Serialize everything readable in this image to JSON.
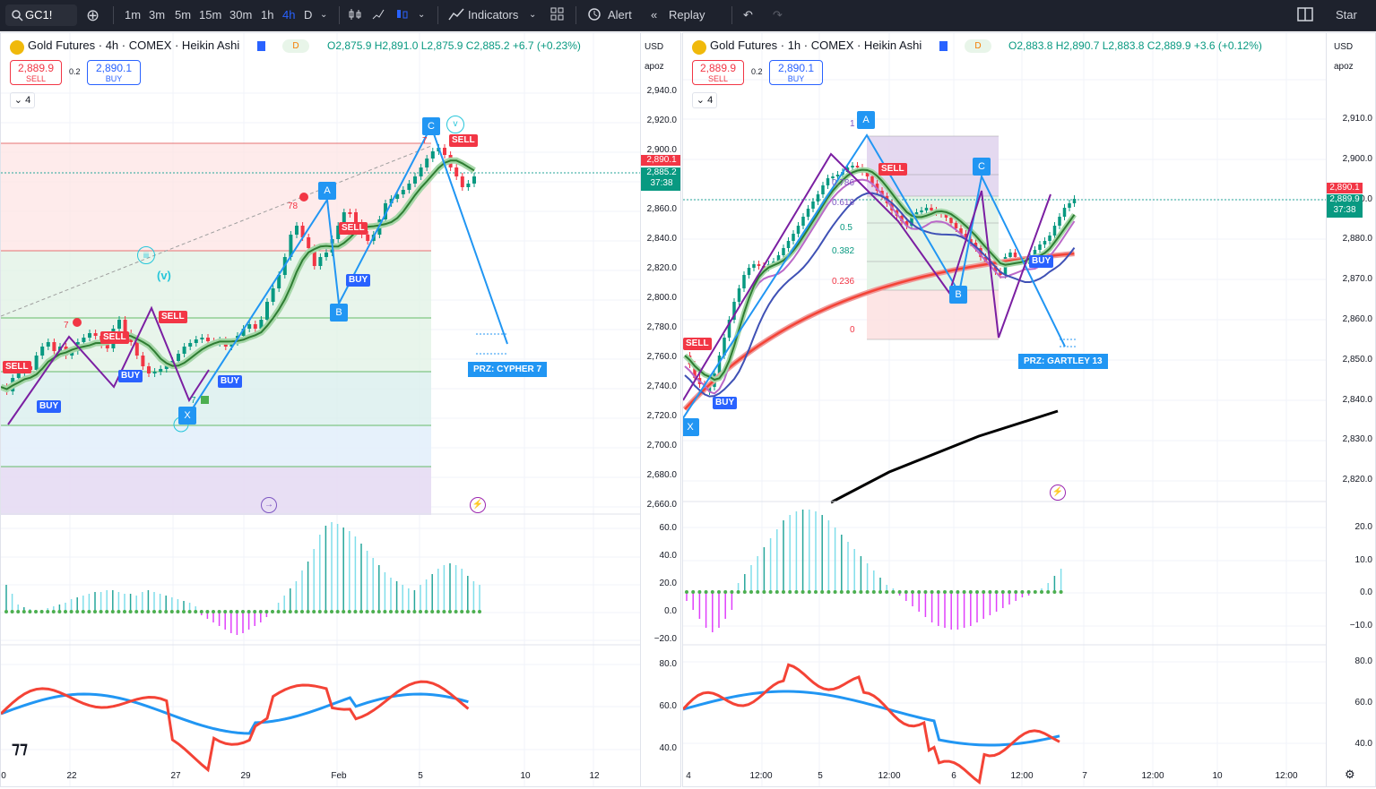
{
  "toolbar": {
    "symbol": "GC1!",
    "intervals": [
      "1m",
      "3m",
      "5m",
      "15m",
      "30m",
      "1h",
      "4h",
      "D"
    ],
    "active_interval": "4h",
    "indicators_label": "Indicators",
    "alert_label": "Alert",
    "replay_label": "Replay",
    "right_label": "Star"
  },
  "left": {
    "title": "Gold Futures · 4h · COMEX · Heikin Ashi",
    "badge": "D",
    "ohlc": "O2,875.9 H2,891.0 L2,875.9 C2,885.2 +6.7 (+0.23%)",
    "sell_price": "2,889.9",
    "sell_label": "SELL",
    "spread": "0.2",
    "buy_price": "2,890.1",
    "buy_label": "BUY",
    "collapse": "4",
    "currency": "USD",
    "mode": "apoz",
    "price_ticks": [
      "2,940.0",
      "2,920.0",
      "2,900.0",
      "2,880.0",
      "2,860.0",
      "2,840.0",
      "2,820.0",
      "2,800.0",
      "2,780.0",
      "2,760.0",
      "2,740.0",
      "2,720.0",
      "2,700.0",
      "2,680.0",
      "2,660.0"
    ],
    "osc_ticks": [
      "60.0",
      "40.0",
      "20.0",
      "0.0",
      "−20.0"
    ],
    "rsi_ticks": [
      "80.0",
      "60.0",
      "40.0"
    ],
    "tag_red": "2,890.1",
    "tag_green": "2,885.2",
    "tag_time": "37:38",
    "x_ticks": [
      "0",
      "22",
      "27",
      "29",
      "Feb",
      "5",
      "10",
      "12"
    ],
    "labels": {
      "sell": "SELL",
      "buy": "BUY",
      "a": "A",
      "b": "B",
      "c": "C",
      "x": "X",
      "wave_v": "(v)",
      "wave_iii": "iii",
      "wave_vv": "v",
      "seven": "7",
      "seven_eight": "78"
    },
    "prz": "PRZ: CYPHER 7"
  },
  "right": {
    "title": "Gold Futures · 1h · COMEX · Heikin Ashi",
    "badge": "D",
    "ohlc": "O2,883.8 H2,890.7 L2,883.8 C2,889.9 +3.6 (+0.12%)",
    "sell_price": "2,889.9",
    "sell_label": "SELL",
    "spread": "0.2",
    "buy_price": "2,890.1",
    "buy_label": "BUY",
    "collapse": "4",
    "currency": "USD",
    "mode": "apoz",
    "price_ticks": [
      "2,910.0",
      "2,900.0",
      "2,890.0",
      "2,880.0",
      "2,870.0",
      "2,860.0",
      "2,850.0",
      "2,840.0",
      "2,830.0",
      "2,820.0"
    ],
    "osc_ticks": [
      "20.0",
      "10.0",
      "0.0",
      "−10.0"
    ],
    "rsi_ticks": [
      "80.0",
      "60.0",
      "40.0"
    ],
    "tag_red": "2,890.1",
    "tag_green": "2,889.9",
    "tag_time": "37:38",
    "x_ticks": [
      "4",
      "12:00",
      "5",
      "12:00",
      "6",
      "12:00",
      "7",
      "12:00",
      "10",
      "12:00"
    ],
    "fib": [
      "1",
      "0.786",
      "0.618",
      "0.5",
      "0.382",
      "0.236",
      "0"
    ],
    "labels": {
      "sell": "SELL",
      "buy": "BUY",
      "a": "A",
      "b": "B",
      "c": "C",
      "x": "X"
    },
    "prz": "PRZ: GARTLEY 13"
  },
  "colors": {
    "up": "#089981",
    "down": "#f23645",
    "accent": "#2962ff",
    "pattern": "#2196f3",
    "toolbar": "#1e222d"
  }
}
